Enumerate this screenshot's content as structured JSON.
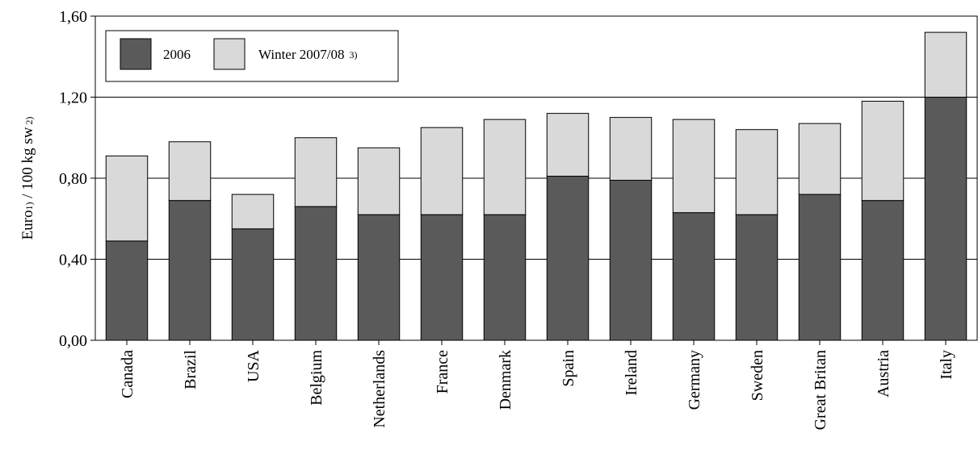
{
  "chart_data": {
    "type": "bar",
    "stacked": true,
    "categories": [
      "Canada",
      "Brazil",
      "USA",
      "Belgium",
      "Netherlands",
      "France",
      "Denmark",
      "Spain",
      "Ireland",
      "Germany",
      "Sweden",
      "Great Britan",
      "Austria",
      "Italy"
    ],
    "series": [
      {
        "name": "2006",
        "color": "#5a5a5a",
        "values": [
          0.49,
          0.69,
          0.55,
          0.66,
          0.62,
          0.62,
          0.62,
          0.81,
          0.79,
          0.63,
          0.62,
          0.72,
          0.69,
          1.2
        ]
      },
      {
        "name": "Winter 2007/08",
        "name_note": "3)",
        "color": "#d9d9d9",
        "values": [
          0.42,
          0.29,
          0.17,
          0.34,
          0.33,
          0.43,
          0.47,
          0.31,
          0.31,
          0.46,
          0.42,
          0.35,
          0.49,
          0.32
        ]
      }
    ],
    "ylabel": "Euro",
    "ylabel_note1": "1)",
    "ylabel_mid": " / 100 kg sw",
    "ylabel_note2": "2)",
    "ylim": [
      0,
      1.6
    ],
    "yticks": [
      0,
      0.4,
      0.8,
      1.2,
      1.6
    ],
    "ytick_labels": [
      "0,00",
      "0,40",
      "0,80",
      "1,20",
      "1,60"
    ],
    "grid": true,
    "legend_position": "top-left"
  }
}
